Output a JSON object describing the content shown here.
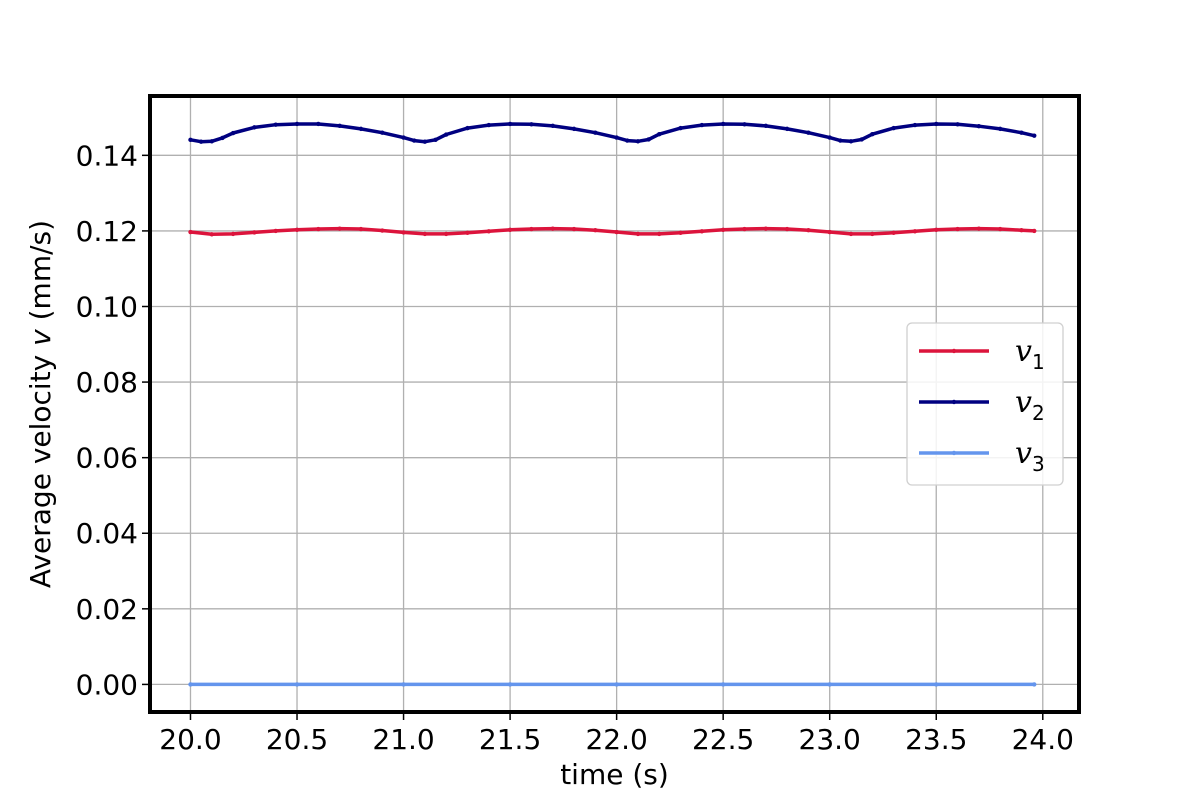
{
  "chart_data": {
    "type": "line",
    "title": "",
    "xlabel": "time (s)",
    "ylabel_prefix": "Average velocity ",
    "ylabel_var": "v",
    "ylabel_suffix": " (mm/s)",
    "xlim": [
      19.81,
      24.17
    ],
    "ylim": [
      -0.0073,
      0.1557
    ],
    "x_ticks": [
      20.0,
      20.5,
      21.0,
      21.5,
      22.0,
      22.5,
      23.0,
      23.5,
      24.0
    ],
    "x_tick_labels": [
      "20.0",
      "20.5",
      "21.0",
      "21.5",
      "22.0",
      "22.5",
      "23.0",
      "23.5",
      "24.0"
    ],
    "y_ticks": [
      0.0,
      0.02,
      0.04,
      0.06,
      0.08,
      0.1,
      0.12,
      0.14
    ],
    "y_tick_labels": [
      "0.00",
      "0.02",
      "0.04",
      "0.06",
      "0.08",
      "0.10",
      "0.12",
      "0.14"
    ],
    "grid": true,
    "legend_position": "center-right",
    "series": [
      {
        "name": "v",
        "subscript": "1",
        "color": "#dc143c",
        "x": [
          20.0,
          20.1,
          20.2,
          20.3,
          20.4,
          20.5,
          20.6,
          20.7,
          20.8,
          20.9,
          21.0,
          21.1,
          21.2,
          21.3,
          21.4,
          21.5,
          21.6,
          21.7,
          21.8,
          21.9,
          22.0,
          22.1,
          22.2,
          22.3,
          22.4,
          22.5,
          22.6,
          22.7,
          22.8,
          22.9,
          23.0,
          23.1,
          23.2,
          23.3,
          23.4,
          23.5,
          23.6,
          23.7,
          23.8,
          23.9,
          23.96
        ],
        "values": [
          0.1197,
          0.1191,
          0.1192,
          0.1196,
          0.12,
          0.1203,
          0.1205,
          0.1206,
          0.1205,
          0.1201,
          0.1196,
          0.1192,
          0.1192,
          0.1195,
          0.1199,
          0.1203,
          0.1205,
          0.1206,
          0.1205,
          0.1202,
          0.1197,
          0.1192,
          0.1192,
          0.1195,
          0.1199,
          0.1203,
          0.1205,
          0.1206,
          0.1205,
          0.1202,
          0.1197,
          0.1192,
          0.1192,
          0.1195,
          0.1199,
          0.1203,
          0.1205,
          0.1206,
          0.1205,
          0.1202,
          0.12
        ]
      },
      {
        "name": "v",
        "subscript": "2",
        "color": "#000080",
        "x": [
          20.0,
          20.05,
          20.1,
          20.15,
          20.2,
          20.3,
          20.4,
          20.5,
          20.6,
          20.7,
          20.8,
          20.9,
          21.0,
          21.05,
          21.1,
          21.15,
          21.2,
          21.3,
          21.4,
          21.5,
          21.6,
          21.7,
          21.8,
          21.9,
          22.0,
          22.05,
          22.1,
          22.15,
          22.2,
          22.3,
          22.4,
          22.5,
          22.6,
          22.7,
          22.8,
          22.9,
          23.0,
          23.05,
          23.1,
          23.15,
          23.2,
          23.3,
          23.4,
          23.5,
          23.6,
          23.7,
          23.8,
          23.9,
          23.96
        ],
        "values": [
          0.1441,
          0.1436,
          0.1437,
          0.1446,
          0.1459,
          0.1474,
          0.1481,
          0.1483,
          0.1483,
          0.1478,
          0.147,
          0.146,
          0.1447,
          0.1439,
          0.1436,
          0.1441,
          0.1455,
          0.1472,
          0.148,
          0.1483,
          0.1482,
          0.1478,
          0.147,
          0.146,
          0.1447,
          0.1439,
          0.1437,
          0.1442,
          0.1456,
          0.1472,
          0.148,
          0.1483,
          0.1482,
          0.1478,
          0.147,
          0.146,
          0.1447,
          0.1439,
          0.1437,
          0.1442,
          0.1456,
          0.1472,
          0.148,
          0.1483,
          0.1482,
          0.1477,
          0.147,
          0.146,
          0.1452
        ]
      },
      {
        "name": "v",
        "subscript": "3",
        "color": "#6495ed",
        "x": [
          20.0,
          20.5,
          21.0,
          21.5,
          22.0,
          22.5,
          23.0,
          23.5,
          23.96
        ],
        "values": [
          0.0,
          0.0,
          0.0,
          0.0,
          0.0,
          0.0,
          0.0,
          0.0,
          0.0
        ]
      }
    ]
  }
}
